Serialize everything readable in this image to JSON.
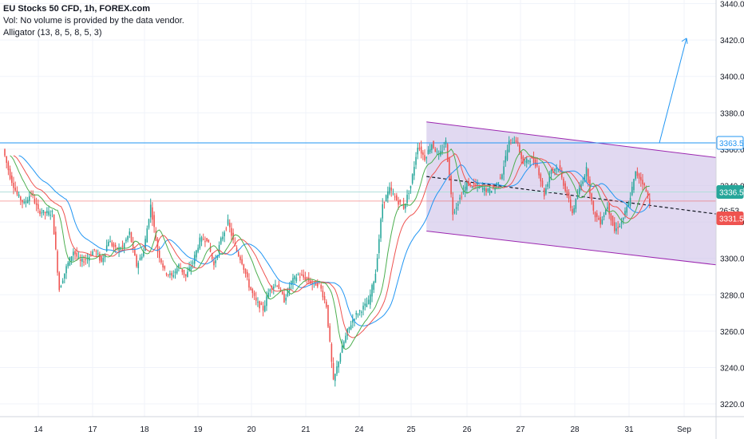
{
  "legend": {
    "title": "EU Stocks 50 CFD, 1h, FOREX.com",
    "vol": "Vol: No volume is provided by the data vendor.",
    "indicator": "Alligator (13, 8, 5, 8, 5, 3)"
  },
  "colors": {
    "up": "#26a69a",
    "down": "#ef5350",
    "jaw": "#2196f3",
    "teeth": "#ef5350",
    "lips": "#4caf50",
    "channel_fill": "#d1c4e9",
    "channel_line": "#9c27b0",
    "horizontal_line": "#2196f3",
    "price_line": "#ef5350"
  },
  "chart_data": {
    "type": "candlestick",
    "y_axis_ticks": [
      "3220.0",
      "3240.0",
      "3260.0",
      "3280.0",
      "3300.0",
      "3320.0",
      "3340.0",
      "3360.0",
      "3380.0",
      "3400.0",
      "3420.0",
      "3440.0"
    ],
    "x_axis_ticks": [
      "14",
      "17",
      "18",
      "19",
      "20",
      "21",
      "24",
      "25",
      "26",
      "27",
      "28",
      "31",
      "Sep"
    ],
    "ylim": [
      3213,
      3442
    ],
    "series": [
      {
        "name": "Alligator Jaw",
        "color": "jaw"
      },
      {
        "name": "Alligator Teeth",
        "color": "teeth"
      },
      {
        "name": "Alligator Lips",
        "color": "lips"
      }
    ],
    "key_path": [
      [
        0,
        3360
      ],
      [
        1,
        3345
      ],
      [
        2,
        3335
      ],
      [
        3,
        3330
      ],
      [
        4,
        3336
      ],
      [
        5,
        3326
      ],
      [
        6,
        3325
      ],
      [
        7,
        3325
      ],
      [
        8,
        3283
      ],
      [
        9,
        3295
      ],
      [
        10,
        3304
      ],
      [
        11,
        3298
      ],
      [
        12,
        3300
      ],
      [
        13,
        3305
      ],
      [
        14,
        3298
      ],
      [
        15,
        3310
      ],
      [
        16,
        3305
      ],
      [
        17,
        3306
      ],
      [
        18,
        3314
      ],
      [
        19,
        3296
      ],
      [
        20,
        3304
      ],
      [
        21,
        3329
      ],
      [
        22,
        3304
      ],
      [
        23,
        3293
      ],
      [
        24,
        3290
      ],
      [
        25,
        3296
      ],
      [
        26,
        3290
      ],
      [
        27,
        3298
      ],
      [
        28,
        3310
      ],
      [
        29,
        3311
      ],
      [
        30,
        3296
      ],
      [
        31,
        3310
      ],
      [
        32,
        3320
      ],
      [
        33,
        3306
      ],
      [
        34,
        3298
      ],
      [
        35,
        3285
      ],
      [
        36,
        3276
      ],
      [
        37,
        3272
      ],
      [
        38,
        3284
      ],
      [
        39,
        3286
      ],
      [
        40,
        3277
      ],
      [
        41,
        3287
      ],
      [
        42,
        3291
      ],
      [
        43,
        3289
      ],
      [
        44,
        3286
      ],
      [
        45,
        3286
      ],
      [
        46,
        3274
      ],
      [
        47,
        3232
      ],
      [
        48,
        3248
      ],
      [
        49,
        3260
      ],
      [
        50,
        3268
      ],
      [
        51,
        3272
      ],
      [
        52,
        3276
      ],
      [
        53,
        3292
      ],
      [
        54,
        3330
      ],
      [
        55,
        3338
      ],
      [
        56,
        3332
      ],
      [
        57,
        3328
      ],
      [
        58,
        3340
      ],
      [
        59,
        3362
      ],
      [
        60,
        3355
      ],
      [
        61,
        3363
      ],
      [
        62,
        3356
      ],
      [
        63,
        3364
      ],
      [
        64,
        3325
      ],
      [
        65,
        3333
      ],
      [
        66,
        3341
      ],
      [
        67,
        3340
      ],
      [
        68,
        3339
      ],
      [
        69,
        3337
      ],
      [
        70,
        3339
      ],
      [
        71,
        3347
      ],
      [
        72,
        3364
      ],
      [
        73,
        3365
      ],
      [
        74,
        3352
      ],
      [
        75,
        3355
      ],
      [
        76,
        3351
      ],
      [
        77,
        3335
      ],
      [
        78,
        3349
      ],
      [
        79,
        3350
      ],
      [
        80,
        3338
      ],
      [
        81,
        3325
      ],
      [
        82,
        3338
      ],
      [
        83,
        3349
      ],
      [
        84,
        3325
      ],
      [
        85,
        3320
      ],
      [
        86,
        3329
      ],
      [
        87,
        3315
      ],
      [
        88,
        3320
      ],
      [
        89,
        3330
      ],
      [
        90,
        3347
      ],
      [
        91,
        3342
      ],
      [
        92,
        3331
      ]
    ],
    "annotations": {
      "horizontal_line_price": 3363.5,
      "secondary_price_line": 3336.5,
      "current_price_line": 3331.5,
      "channel_upper": [
        [
          3375,
          60
        ],
        [
          3356,
          100
        ]
      ],
      "channel_lower": [
        [
          3315,
          60
        ],
        [
          3297,
          100
        ]
      ],
      "dashed_trend": [
        [
          3345,
          60
        ],
        [
          3325,
          100
        ]
      ],
      "arrow": [
        [
          3363.5,
          0
        ],
        [
          3421,
          1
        ]
      ]
    },
    "price_labels": [
      {
        "text": "3363.5",
        "price": 3363.5,
        "style": "outline"
      },
      {
        "text": "3336.5",
        "price": 3336.5,
        "style": "filled-green"
      },
      {
        "text": "26:53",
        "price": 3326.5,
        "style": "plain"
      },
      {
        "text": "3331.5",
        "price": 3322.0,
        "style": "filled-red"
      }
    ]
  }
}
